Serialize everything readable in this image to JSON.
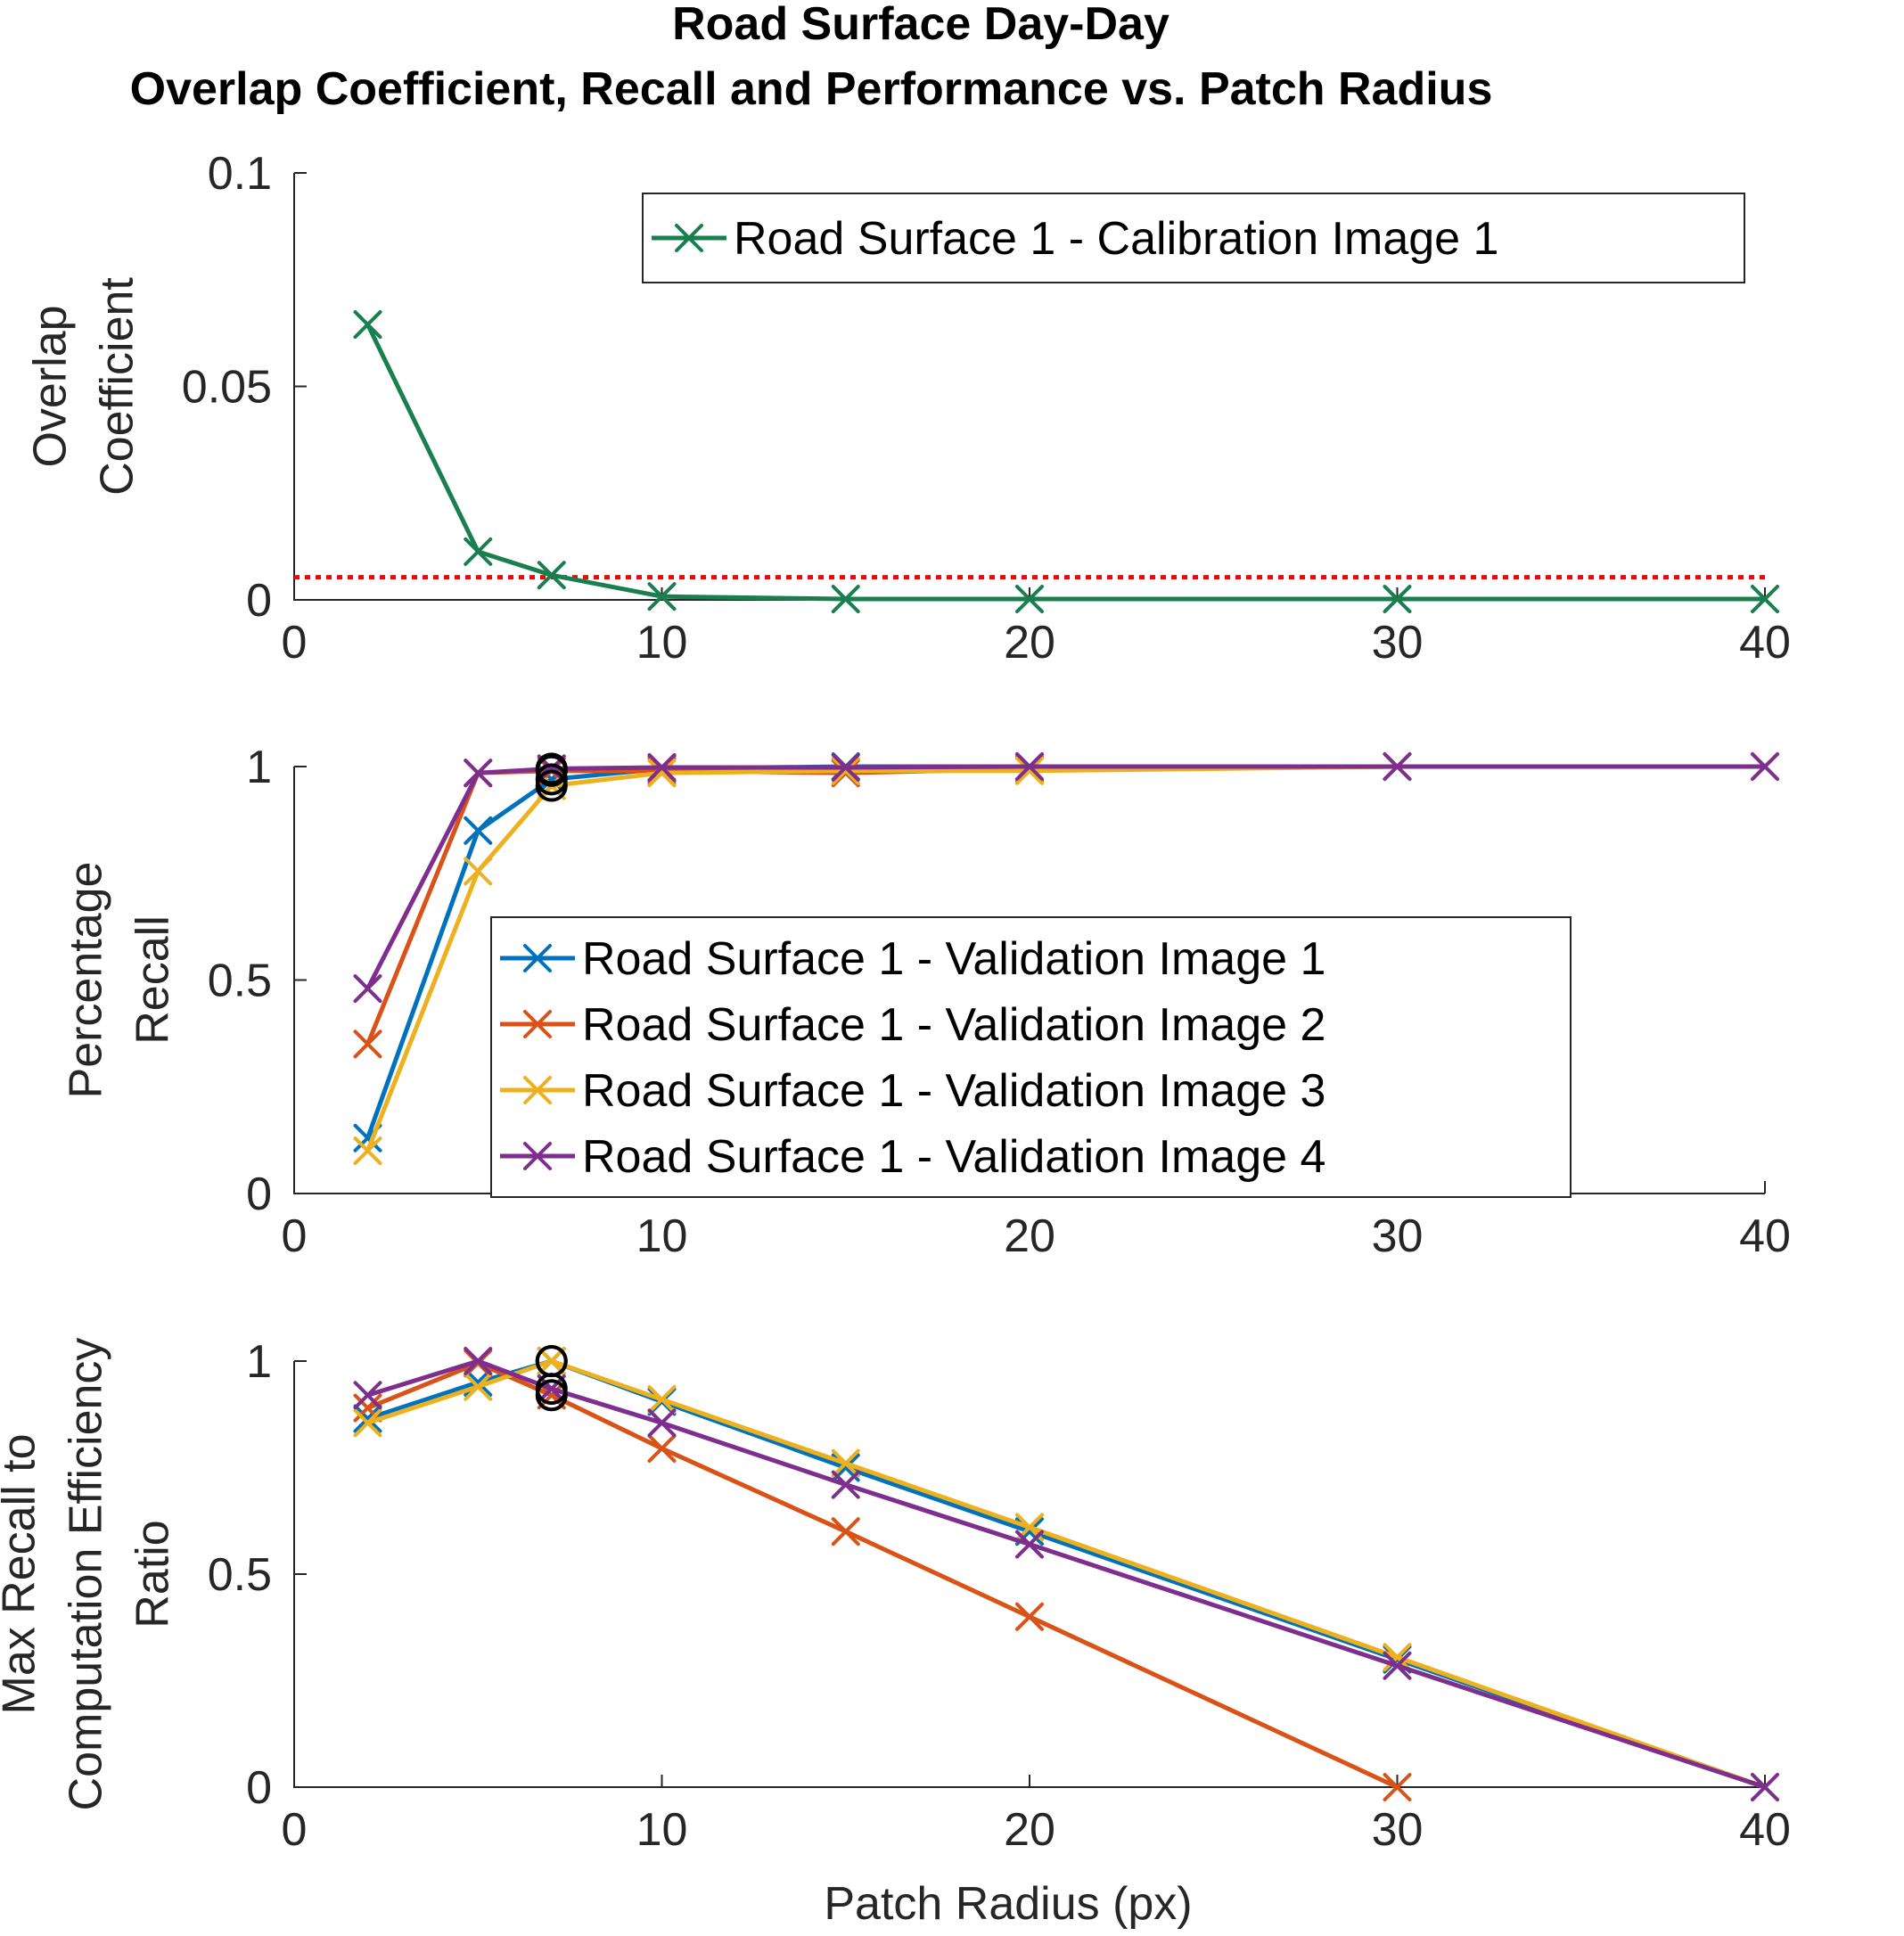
{
  "chart_data": {
    "type": "line",
    "title_lines": [
      "Road Surface Day-Day",
      "Overlap Coefficient, Recall and Performance vs. Patch Radius"
    ],
    "xlabel": "Patch Radius (px)",
    "colors": {
      "calibration": "#1a7f4f",
      "val1": "#0072bd",
      "val2": "#d95319",
      "val3": "#edb120",
      "val4": "#7e2f8e",
      "threshold": "#ff0000",
      "selected_marker": "#000000"
    },
    "subplots": [
      {
        "id": "overlap",
        "ylabel_lines": [
          "Overlap",
          "Coefficient"
        ],
        "xlim": [
          0,
          40
        ],
        "ylim": [
          0,
          0.1
        ],
        "xticks": [
          0,
          10,
          20,
          30,
          40
        ],
        "xtick_labels": [
          "0",
          "10",
          "20",
          "30",
          "40"
        ],
        "yticks": [
          0,
          0.05,
          0.1
        ],
        "ytick_labels": [
          "0",
          "0.05",
          "0.1"
        ],
        "threshold": 0.0053,
        "legend": {
          "placement": "top-right"
        },
        "series": [
          {
            "name": "Road Surface 1 - Calibration Image 1",
            "color_key": "calibration",
            "x": [
              2,
              5,
              7,
              10,
              15,
              20,
              30,
              40
            ],
            "y": [
              0.0645,
              0.0113,
              0.0058,
              0.0008,
              0.0002,
              0.0002,
              0.0002,
              0.0002
            ]
          }
        ],
        "circles": []
      },
      {
        "id": "recall",
        "ylabel_lines": [
          "Percentage",
          "Recall"
        ],
        "xlim": [
          0,
          40
        ],
        "ylim": [
          0,
          1
        ],
        "xticks": [
          0,
          10,
          20,
          30,
          40
        ],
        "xtick_labels": [
          "0",
          "10",
          "20",
          "30",
          "40"
        ],
        "yticks": [
          0,
          0.5,
          1
        ],
        "ytick_labels": [
          "0",
          "0.5",
          "1"
        ],
        "legend": {
          "placement": "lower-center"
        },
        "series": [
          {
            "name": "Road Surface 1 - Validation Image 1",
            "color_key": "val1",
            "x": [
              2,
              5,
              7,
              10,
              15,
              20,
              30,
              40
            ],
            "y": [
              0.13,
              0.85,
              0.97,
              0.995,
              1.0,
              1.0,
              1.0,
              1.0
            ]
          },
          {
            "name": "Road Surface 1 - Validation Image 2",
            "color_key": "val2",
            "x": [
              2,
              5,
              7,
              10,
              15,
              20,
              30,
              40
            ],
            "y": [
              0.35,
              0.985,
              0.99,
              0.99,
              0.985,
              0.995,
              1.0,
              1.0
            ]
          },
          {
            "name": "Road Surface 1 - Validation Image 3",
            "color_key": "val3",
            "x": [
              2,
              5,
              7,
              10,
              15,
              20,
              30,
              40
            ],
            "y": [
              0.1,
              0.755,
              0.955,
              0.985,
              0.99,
              0.99,
              1.0,
              1.0
            ]
          },
          {
            "name": "Road Surface 1 - Validation Image 4",
            "color_key": "val4",
            "x": [
              2,
              5,
              7,
              10,
              15,
              20,
              30,
              40
            ],
            "y": [
              0.48,
              0.985,
              0.995,
              0.998,
              0.998,
              1.0,
              1.0,
              1.0
            ]
          }
        ],
        "circles": [
          {
            "x": 7,
            "y": 0.97
          },
          {
            "x": 7,
            "y": 0.99
          },
          {
            "x": 7,
            "y": 0.955
          },
          {
            "x": 7,
            "y": 0.995
          }
        ]
      },
      {
        "id": "efficiency",
        "ylabel_lines": [
          "Max Recall to",
          "Computation Efficiency",
          "Ratio"
        ],
        "xlim": [
          0,
          40
        ],
        "ylim": [
          0,
          1
        ],
        "xticks": [
          0,
          10,
          20,
          30,
          40
        ],
        "xtick_labels": [
          "0",
          "10",
          "20",
          "30",
          "40"
        ],
        "yticks": [
          0,
          0.5,
          1
        ],
        "ytick_labels": [
          "0",
          "0.5",
          "1"
        ],
        "legend": null,
        "series": [
          {
            "name": "Road Surface 1 - Validation Image 1",
            "color_key": "val1",
            "x": [
              2,
              5,
              7,
              10,
              15,
              20,
              30,
              40
            ],
            "y": [
              0.865,
              0.95,
              1.0,
              0.905,
              0.75,
              0.6,
              0.3,
              0.0
            ]
          },
          {
            "name": "Road Surface 1 - Validation Image 2",
            "color_key": "val2",
            "x": [
              2,
              5,
              7,
              10,
              15,
              20,
              30,
              40
            ],
            "y": [
              0.89,
              0.995,
              0.92,
              0.795,
              0.6,
              0.4,
              0.0,
              null
            ]
          },
          {
            "name": "Road Surface 1 - Validation Image 3",
            "color_key": "val3",
            "x": [
              2,
              5,
              7,
              10,
              15,
              20,
              30,
              40
            ],
            "y": [
              0.855,
              0.94,
              1.0,
              0.91,
              0.76,
              0.61,
              0.305,
              0.0
            ]
          },
          {
            "name": "Road Surface 1 - Validation Image 4",
            "color_key": "val4",
            "x": [
              2,
              5,
              7,
              10,
              15,
              20,
              30,
              40
            ],
            "y": [
              0.92,
              1.0,
              0.935,
              0.855,
              0.71,
              0.57,
              0.285,
              0.0
            ]
          }
        ],
        "circles": [
          {
            "x": 7,
            "y": 1.0
          },
          {
            "x": 7,
            "y": 0.92
          },
          {
            "x": 7,
            "y": 1.0
          },
          {
            "x": 7,
            "y": 0.935
          }
        ]
      }
    ]
  }
}
